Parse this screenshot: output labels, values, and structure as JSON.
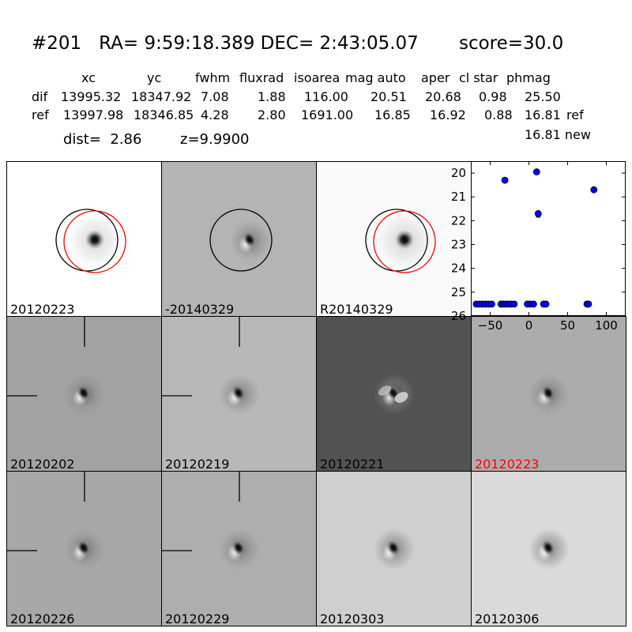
{
  "header": {
    "title": "#201   RA= 9:59:18.389 DEC= 2:43:05.07       score=30.0",
    "columns": [
      "xc",
      "yc",
      "fwhm",
      "fluxrad",
      "isoarea",
      "mag auto",
      "aper",
      "cl star",
      "phmag"
    ],
    "rows": [
      {
        "name": "dif",
        "values": [
          "13995.32",
          "18347.92",
          "7.08",
          "1.88",
          "116.00",
          "20.51",
          "20.68",
          "0.98",
          "25.50"
        ],
        "extra": ""
      },
      {
        "name": "ref",
        "values": [
          "13997.98",
          "18346.85",
          "4.28",
          "2.80",
          "1691.00",
          "16.85",
          "16.92",
          "0.88",
          "16.81"
        ],
        "extra": "ref"
      }
    ],
    "new_mag": "16.81 new",
    "dist": "dist=  2.86",
    "z": "z=9.9900"
  },
  "panels": [
    {
      "label": "20120223",
      "bg": "#ffffff",
      "circles": [
        "black",
        "red"
      ],
      "crosshair": false,
      "label_color": "#000000"
    },
    {
      "label": "-20140329",
      "bg": "#b4b4b4",
      "circles": [
        "black"
      ],
      "crosshair": false,
      "label_color": "#000000"
    },
    {
      "label": "R20140329",
      "bg": "#fafafa",
      "circles": [
        "black",
        "red"
      ],
      "crosshair": false,
      "label_color": "#000000"
    },
    {
      "label": "20120202",
      "bg": "#a2a2a2",
      "circles": [],
      "crosshair": true,
      "label_color": "#000000"
    },
    {
      "label": "20120219",
      "bg": "#b8b8b8",
      "circles": [],
      "crosshair": true,
      "label_color": "#000000"
    },
    {
      "label": "20120221",
      "bg": "#525252",
      "circles": [],
      "crosshair": false,
      "label_color": "#000000"
    },
    {
      "label": "20120223",
      "bg": "#acacac",
      "circles": [],
      "crosshair": false,
      "label_color": "#ff0000"
    },
    {
      "label": "20120226",
      "bg": "#a8a8a8",
      "circles": [],
      "crosshair": true,
      "label_color": "#000000"
    },
    {
      "label": "20120229",
      "bg": "#aeaeae",
      "circles": [],
      "crosshair": true,
      "label_color": "#000000"
    },
    {
      "label": "20120303",
      "bg": "#cfcfcf",
      "circles": [],
      "crosshair": false,
      "label_color": "#000000"
    },
    {
      "label": "20120306",
      "bg": "#dadada",
      "circles": [],
      "crosshair": false,
      "label_color": "#000000"
    }
  ],
  "chart_data": {
    "type": "scatter",
    "xlim": [
      -75,
      125
    ],
    "ylim": [
      26,
      19.5
    ],
    "xticks": [
      -50,
      0,
      50,
      100
    ],
    "yticks": [
      20,
      21,
      22,
      23,
      24,
      25,
      26
    ],
    "color": "#0000ff",
    "points": [
      {
        "x": -68,
        "y": 25.5
      },
      {
        "x": -64,
        "y": 25.5
      },
      {
        "x": -60,
        "y": 25.5
      },
      {
        "x": -56,
        "y": 25.5
      },
      {
        "x": -52,
        "y": 25.5
      },
      {
        "x": -48,
        "y": 25.5
      },
      {
        "x": -36,
        "y": 25.5
      },
      {
        "x": -33,
        "y": 25.5
      },
      {
        "x": -30,
        "y": 25.5
      },
      {
        "x": -27,
        "y": 25.5
      },
      {
        "x": -23,
        "y": 25.5
      },
      {
        "x": -19,
        "y": 25.5
      },
      {
        "x": -31,
        "y": 20.3
      },
      {
        "x": -2,
        "y": 25.5
      },
      {
        "x": 2,
        "y": 25.5
      },
      {
        "x": 6,
        "y": 25.5
      },
      {
        "x": 10,
        "y": 19.95
      },
      {
        "x": 12,
        "y": 21.7,
        "err": 0.15
      },
      {
        "x": 19,
        "y": 25.5
      },
      {
        "x": 22,
        "y": 25.5
      },
      {
        "x": 75,
        "y": 25.5
      },
      {
        "x": 77,
        "y": 25.5
      },
      {
        "x": 84,
        "y": 20.7
      }
    ]
  }
}
